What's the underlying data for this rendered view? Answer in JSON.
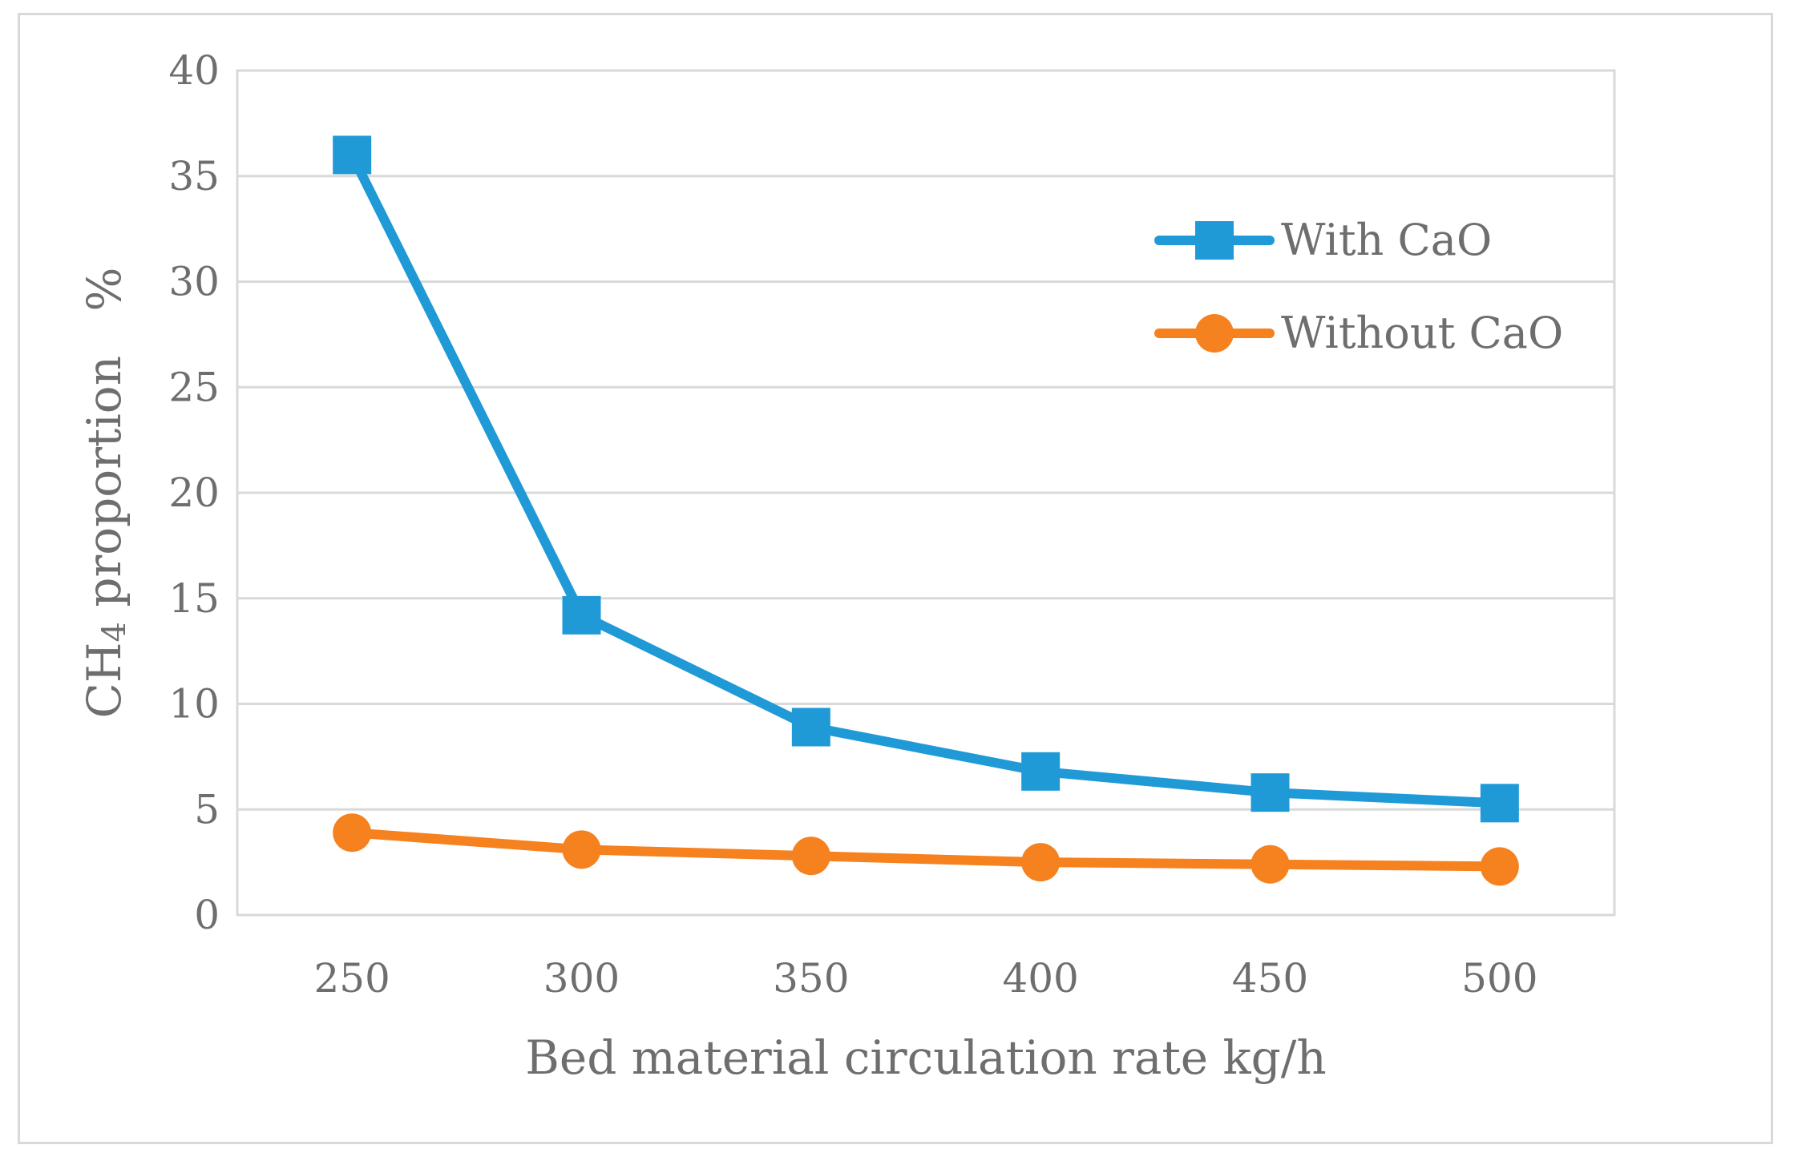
{
  "chart_data": {
    "type": "line",
    "title": "",
    "xlabel": "Bed material circulation rate   kg/h",
    "ylabel_main": "CH",
    "ylabel_sub": "4",
    "ylabel_rest": " proportion   %",
    "categories": [
      "250",
      "300",
      "350",
      "400",
      "450",
      "500"
    ],
    "yticks": [
      "0",
      "5",
      "10",
      "15",
      "20",
      "25",
      "30",
      "35",
      "40"
    ],
    "ylim": [
      0,
      40
    ],
    "grid": true,
    "legend_position": "top-right",
    "series": [
      {
        "name": "With CaO",
        "marker": "square",
        "color": "#1f9ad6",
        "values": [
          36.0,
          14.2,
          8.9,
          6.8,
          5.8,
          5.3
        ]
      },
      {
        "name": "Without CaO",
        "marker": "circle",
        "color": "#f5811f",
        "values": [
          3.9,
          3.1,
          2.8,
          2.5,
          2.4,
          2.3
        ]
      }
    ]
  }
}
